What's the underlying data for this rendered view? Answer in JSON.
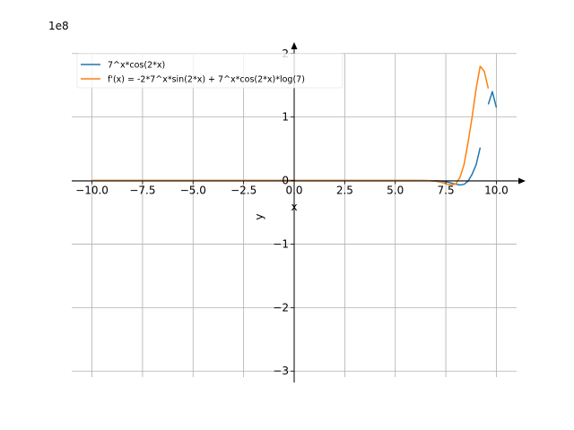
{
  "chart_data": {
    "type": "line",
    "xlabel": "x",
    "ylabel": "y",
    "offset_label": "1e8",
    "xlim": [
      -11.0,
      11.0
    ],
    "ylim": [
      -3.18,
      2.18
    ],
    "grid": true,
    "legend_position": "top-left",
    "x_ticks": [
      -10.0,
      -7.5,
      -5.0,
      -2.5,
      0.0,
      2.5,
      5.0,
      7.5,
      10.0
    ],
    "x_tick_labels": [
      "−10.0",
      "−7.5",
      "−5.0",
      "−2.5",
      "0.0",
      "2.5",
      "5.0",
      "7.5",
      "10.0"
    ],
    "y_ticks": [
      -3,
      -2,
      -1,
      0,
      1,
      2
    ],
    "y_tick_labels": [
      "−3",
      "−2",
      "−1",
      "0",
      "1",
      "2"
    ],
    "series": [
      {
        "name": "7^x*cos(2*x)",
        "color": "#1f77b4",
        "segments": [
          {
            "x": [
              -10.0,
              0.0,
              6.0,
              7.0,
              7.3,
              7.6,
              7.9,
              8.2,
              8.4,
              8.6,
              8.8,
              9.0,
              9.2
            ],
            "y": [
              0.0,
              0.0,
              0.0,
              -0.003,
              -0.008,
              -0.025,
              -0.05,
              -0.07,
              -0.06,
              -0.01,
              0.1,
              0.25,
              0.52
            ]
          },
          {
            "x": [
              9.6,
              9.8,
              10.0
            ],
            "y": [
              1.2,
              1.4,
              1.15
            ]
          }
        ]
      },
      {
        "name": "f'(x) = -2*7^x*sin(2*x) + 7^x*cos(2*x)*log(7)",
        "color": "#ff7f0e",
        "segments": [
          {
            "x": [
              -10.0,
              0.0,
              6.5,
              7.0,
              7.3,
              7.6,
              7.8,
              8.0,
              8.2,
              8.4,
              8.6,
              8.8,
              9.0,
              9.2,
              9.4,
              9.6
            ],
            "y": [
              0.0,
              0.0,
              0.0,
              -0.01,
              -0.03,
              -0.06,
              -0.07,
              -0.05,
              0.05,
              0.25,
              0.6,
              1.0,
              1.45,
              1.8,
              1.72,
              1.45
            ]
          }
        ]
      }
    ]
  }
}
